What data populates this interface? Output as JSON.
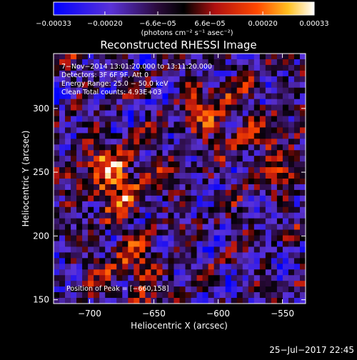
{
  "colorbar": {
    "tick_labels": [
      "−0.00033",
      "−0.00020",
      "−6.6e−05",
      "6.6e−05",
      "0.00020",
      "0.00033"
    ],
    "tick_values": [
      -0.00033,
      -0.0002,
      -6.6e-05,
      6.6e-05,
      0.0002,
      0.00033
    ],
    "range": [
      -0.00033,
      0.00033
    ],
    "unit_label": "(photons cm⁻² s⁻¹ asec⁻²)"
  },
  "info": {
    "line1": "7−Nov−2014 13:01:20.000 to 13:11:20.000",
    "line2": "Detectors: 3F 6F 9F, Att 0",
    "line3": "Energy Range: 25.0 − 50.0 keV",
    "line4": "Clean     Total counts: 4.93E+03",
    "peak": "Position of Peak = [−660,158]"
  },
  "footer": {
    "timestamp": "25−Jul−2017 22:45"
  },
  "chart_data": {
    "type": "heatmap",
    "title": "Reconstructed RHESSI Image",
    "xlabel": "Heliocentric X (arcsec)",
    "ylabel": "Heliocentric Y (arcsec)",
    "xlim": [
      -728,
      -532
    ],
    "ylim": [
      147,
      343
    ],
    "x_ticks": [
      -700,
      -650,
      -600,
      -550
    ],
    "y_ticks": [
      150,
      200,
      250,
      300
    ],
    "x_tick_labels": [
      "−700",
      "−650",
      "−600",
      "−550"
    ],
    "y_tick_labels": [
      "150",
      "200",
      "250",
      "300"
    ],
    "peak_position": [
      -660,
      158
    ],
    "grid": false,
    "colormap": "blue-purple-black-red-orange-yellow-white",
    "colors": [
      "#0000ff",
      "#6a2fd0",
      "#000000",
      "#b01010",
      "#ff3000",
      "#ffa000",
      "#ffff40",
      "#ffffff"
    ]
  }
}
